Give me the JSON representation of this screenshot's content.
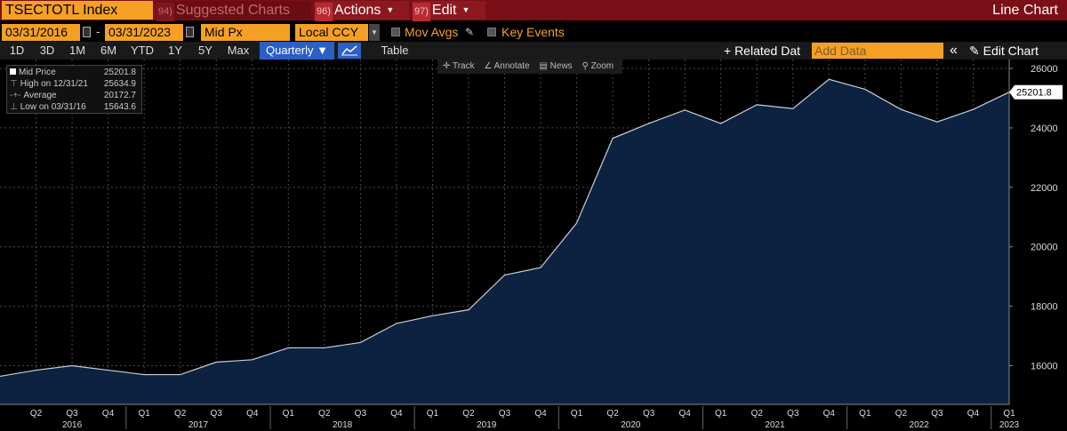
{
  "titlebar": {
    "ticker": "TSECTOTL Index",
    "menus": [
      {
        "num": "94)",
        "label": "Suggested Charts"
      },
      {
        "num": "96)",
        "label": "Actions"
      },
      {
        "num": "97)",
        "label": "Edit"
      }
    ],
    "chart_type_label": "Line Chart"
  },
  "controls": {
    "start_date": "03/31/2016",
    "end_date": "03/31/2023",
    "date_separator": "-",
    "price_field": "Mid Px",
    "currency": "Local CCY",
    "mov_avgs_label": "Mov Avgs",
    "key_events_label": "Key Events"
  },
  "periods": [
    "1D",
    "3D",
    "1M",
    "6M",
    "YTD",
    "1Y",
    "5Y",
    "Max"
  ],
  "frequency": "Quarterly",
  "frequency_caret": "▼",
  "table_label": "Table",
  "related_data_label": "+ Related Dat",
  "add_data_placeholder": "Add Data",
  "collapse_label": "«",
  "edit_chart_label": "Edit Chart",
  "pencil_glyph": "✎",
  "tools": [
    "Track",
    "Annotate",
    "News",
    "Zoom"
  ],
  "legend": {
    "rows": [
      {
        "label": "Mid Price",
        "value": "25201.8"
      },
      {
        "label": "High on 12/31/21",
        "value": "25634.9"
      },
      {
        "label": "Average",
        "value": "20172.7"
      },
      {
        "label": "Low on 03/31/16",
        "value": "15643.6"
      }
    ]
  },
  "colors": {
    "area_fill": "#0d2240",
    "line": "#c8d0dc",
    "grid": "#4a4a4a",
    "accent_orange": "#f5a025",
    "title_bg": "#7a0f17",
    "active_blue": "#2a5fc8"
  },
  "chart_data": {
    "type": "area",
    "x": [
      "2016-Q1",
      "2016-Q2",
      "2016-Q3",
      "2016-Q4",
      "2017-Q1",
      "2017-Q2",
      "2017-Q3",
      "2017-Q4",
      "2018-Q1",
      "2018-Q2",
      "2018-Q3",
      "2018-Q4",
      "2019-Q1",
      "2019-Q2",
      "2019-Q3",
      "2019-Q4",
      "2020-Q1",
      "2020-Q2",
      "2020-Q3",
      "2020-Q4",
      "2021-Q1",
      "2021-Q2",
      "2021-Q3",
      "2021-Q4",
      "2022-Q1",
      "2022-Q2",
      "2022-Q3",
      "2022-Q4",
      "2023-Q1"
    ],
    "values": [
      15644,
      15850,
      16000,
      15850,
      15700,
      15700,
      16120,
      16200,
      16600,
      16600,
      16780,
      17420,
      17680,
      17880,
      19050,
      19300,
      20800,
      23650,
      24150,
      24600,
      24150,
      24780,
      24650,
      25635,
      25300,
      24620,
      24200,
      24620,
      25202
    ],
    "ylim": [
      14700,
      26300
    ],
    "y_ticks": [
      16000,
      18000,
      20000,
      22000,
      24000,
      26000
    ],
    "quarter_labels": [
      "Q2",
      "Q3",
      "Q4",
      "Q1",
      "Q2",
      "Q3",
      "Q4",
      "Q1",
      "Q2",
      "Q3",
      "Q4",
      "Q1",
      "Q2",
      "Q3",
      "Q4",
      "Q1",
      "Q2",
      "Q3",
      "Q4",
      "Q1",
      "Q2",
      "Q3",
      "Q4",
      "Q1",
      "Q2",
      "Q3",
      "Q4",
      "Q1"
    ],
    "year_labels": [
      "2016",
      "2017",
      "2018",
      "2019",
      "2020",
      "2021",
      "2022",
      "2023"
    ],
    "last_value_label": "25201.8",
    "grid": true,
    "legend_position": "top-left"
  }
}
